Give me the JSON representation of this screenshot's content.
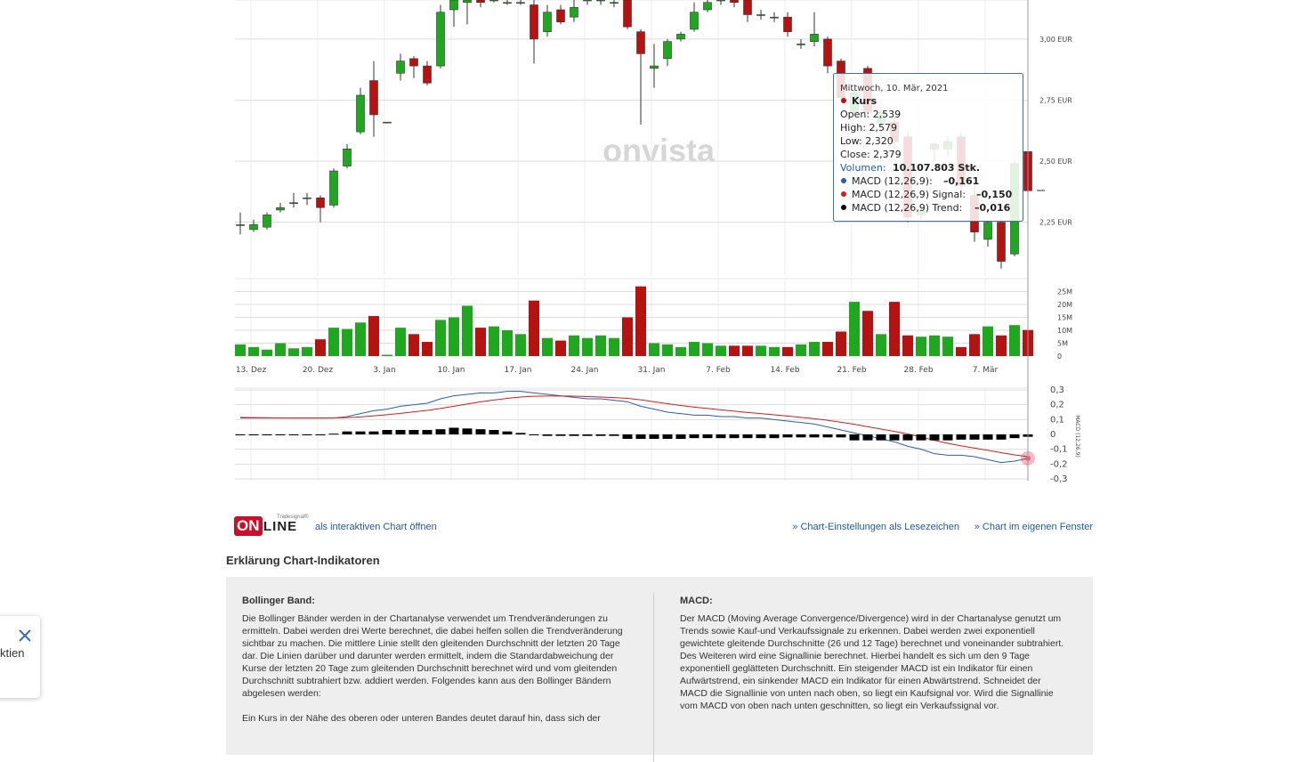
{
  "chart_data": [
    {
      "type": "candlestick",
      "open": [
        2.24,
        2.22,
        2.23,
        2.3,
        2.33,
        2.35,
        2.35,
        2.32,
        2.48,
        2.62,
        2.83,
        2.66,
        2.86,
        2.92,
        2.89,
        2.89,
        3.12,
        3.15,
        3.16,
        3.16,
        3.15,
        3.15,
        3.14,
        3.03,
        3.12,
        3.09,
        3.16,
        3.16,
        3.15,
        3.16,
        3.03,
        2.88,
        2.92,
        3.0,
        3.04,
        3.12,
        3.16,
        3.16,
        3.16,
        3.1,
        3.09,
        3.09,
        2.98,
        2.99,
        3.0,
        2.91,
        2.7,
        2.88,
        2.66,
        2.66,
        2.6,
        2.28,
        2.55,
        2.55,
        2.6,
        2.36,
        2.18,
        2.25,
        2.12,
        2.539
      ],
      "high": [
        2.29,
        2.26,
        2.29,
        2.33,
        2.37,
        2.37,
        2.36,
        2.47,
        2.57,
        2.8,
        2.91,
        2.66,
        2.94,
        2.93,
        2.91,
        3.14,
        3.18,
        3.18,
        3.17,
        3.17,
        3.17,
        3.17,
        3.16,
        3.14,
        3.14,
        3.16,
        3.17,
        3.17,
        3.17,
        3.17,
        3.04,
        2.98,
        3.0,
        3.03,
        3.15,
        3.17,
        3.17,
        3.17,
        3.17,
        3.12,
        3.11,
        3.11,
        3.0,
        3.11,
        3.01,
        2.92,
        2.8,
        2.89,
        2.72,
        2.68,
        2.62,
        2.32,
        2.58,
        2.6,
        2.62,
        2.4,
        2.26,
        2.27,
        2.5,
        2.579
      ],
      "low": [
        2.2,
        2.21,
        2.22,
        2.29,
        2.31,
        2.32,
        2.25,
        2.31,
        2.47,
        2.61,
        2.6,
        2.66,
        2.83,
        2.84,
        2.81,
        2.88,
        3.05,
        3.06,
        3.13,
        3.15,
        3.14,
        3.14,
        2.9,
        3.01,
        3.06,
        3.07,
        3.14,
        3.14,
        3.13,
        3.04,
        2.65,
        2.8,
        2.89,
        2.99,
        3.03,
        3.11,
        3.14,
        3.13,
        3.07,
        3.08,
        3.07,
        3.01,
        2.96,
        2.97,
        2.86,
        2.74,
        2.68,
        2.68,
        2.6,
        2.55,
        2.25,
        2.26,
        2.5,
        2.52,
        2.38,
        2.17,
        2.15,
        2.06,
        2.11,
        2.32
      ],
      "close": [
        2.24,
        2.24,
        2.28,
        2.31,
        2.33,
        2.35,
        2.31,
        2.46,
        2.55,
        2.77,
        2.69,
        2.66,
        2.91,
        2.89,
        2.82,
        3.11,
        3.16,
        3.16,
        3.15,
        3.16,
        3.15,
        3.15,
        3.0,
        3.11,
        3.07,
        3.13,
        3.16,
        3.16,
        3.15,
        3.05,
        2.94,
        2.89,
        2.99,
        3.02,
        3.11,
        3.15,
        3.16,
        3.15,
        3.1,
        3.1,
        3.09,
        3.03,
        2.98,
        3.02,
        2.89,
        2.76,
        2.78,
        2.7,
        2.7,
        2.58,
        2.27,
        2.3,
        2.57,
        2.58,
        2.4,
        2.21,
        2.25,
        2.09,
        2.49,
        2.379
      ],
      "up_color": "#1fa71f",
      "down_color": "#b51212",
      "ylim": [
        2.03,
        3.16
      ],
      "yticks": [
        {
          "value": 2.25,
          "label": "2,25 EUR"
        },
        {
          "value": 2.5,
          "label": "2,50 EUR"
        },
        {
          "value": 2.75,
          "label": "2,75 EUR"
        },
        {
          "value": 3,
          "label": "3,00 EUR"
        }
      ],
      "grid": true,
      "watermark": "onvista"
    },
    {
      "type": "bar",
      "values": [
        4.5,
        3.5,
        2.5,
        5,
        3,
        3.5,
        6.5,
        11,
        10.5,
        13,
        15.5,
        0.5,
        11,
        8.5,
        5.5,
        14,
        15,
        19.5,
        11,
        11.5,
        10,
        8.5,
        21.5,
        7,
        6,
        8,
        7,
        8,
        7,
        15,
        27,
        5,
        4.5,
        3.5,
        5.5,
        5,
        4,
        4,
        4,
        4,
        3.5,
        3.5,
        4.5,
        5.5,
        5.5,
        9.5,
        21,
        17.5,
        8.5,
        21,
        8,
        7.5,
        8,
        7.5,
        3.5,
        8.5,
        11.5,
        8,
        12,
        10.1
      ],
      "ylim": [
        0,
        30
      ],
      "yticks": [
        0,
        {
          "value": 5,
          "label": "5M"
        },
        {
          "value": 10,
          "label": "10M"
        },
        {
          "value": 15,
          "label": "15M"
        },
        {
          "value": 20,
          "label": "20M"
        },
        {
          "value": 25,
          "label": "25M"
        }
      ],
      "date_labels": [
        "13. Dez",
        "20. Dez",
        "3. Jan",
        "10. Jan",
        "17. Jan",
        "24. Jan",
        "31. Jan",
        "7. Feb",
        "14. Feb",
        "21. Feb",
        "28. Feb",
        "7. Mär"
      ],
      "grid": true
    },
    {
      "type": "line",
      "y_label": "MACD (12,26,9)",
      "ylim": [
        -0.312,
        0.312
      ],
      "yticks": [
        {
          "value": 0.3,
          "label": "0,3"
        },
        {
          "value": 0.2,
          "label": "0,2"
        },
        {
          "value": 0.1,
          "label": "0,1"
        },
        0,
        {
          "value": -0.1,
          "label": "-0,1"
        },
        {
          "value": -0.2,
          "label": "-0,2"
        },
        {
          "value": -0.3,
          "label": "-0,3"
        }
      ],
      "grid": true,
      "series": [
        {
          "color": "#2a5ea8",
          "style": "line",
          "values": [
            0.11,
            0.11,
            0.11,
            0.11,
            0.11,
            0.11,
            0.11,
            0.11,
            0.12,
            0.14,
            0.16,
            0.17,
            0.19,
            0.2,
            0.21,
            0.24,
            0.26,
            0.27,
            0.28,
            0.28,
            0.29,
            0.29,
            0.28,
            0.27,
            0.26,
            0.25,
            0.24,
            0.24,
            0.23,
            0.22,
            0.19,
            0.17,
            0.15,
            0.14,
            0.13,
            0.13,
            0.12,
            0.12,
            0.11,
            0.11,
            0.1,
            0.09,
            0.08,
            0.07,
            0.05,
            0.03,
            0.01,
            -0.01,
            -0.03,
            -0.05,
            -0.08,
            -0.1,
            -0.13,
            -0.14,
            -0.14,
            -0.15,
            -0.17,
            -0.19,
            -0.18,
            -0.161
          ]
        },
        {
          "color": "#d81c1c",
          "style": "line",
          "values": [
            0.115,
            0.113,
            0.112,
            0.111,
            0.11,
            0.11,
            0.11,
            0.111,
            0.113,
            0.118,
            0.125,
            0.133,
            0.142,
            0.152,
            0.162,
            0.175,
            0.19,
            0.205,
            0.22,
            0.232,
            0.243,
            0.252,
            0.257,
            0.259,
            0.259,
            0.258,
            0.255,
            0.252,
            0.248,
            0.243,
            0.233,
            0.22,
            0.207,
            0.195,
            0.184,
            0.175,
            0.166,
            0.157,
            0.148,
            0.14,
            0.132,
            0.124,
            0.115,
            0.106,
            0.095,
            0.082,
            0.068,
            0.052,
            0.036,
            0.02,
            0.003,
            -0.017,
            -0.04,
            -0.06,
            -0.077,
            -0.092,
            -0.107,
            -0.123,
            -0.138,
            -0.15
          ]
        },
        {
          "color": "#000000",
          "style": "bar",
          "values": [
            -0.005,
            -0.005,
            -0.005,
            -0.005,
            -0.005,
            -0.005,
            -0.005,
            0.005,
            0.02,
            0.02,
            0.02,
            0.03,
            0.03,
            0.03,
            0.03,
            0.035,
            0.045,
            0.04,
            0.035,
            0.03,
            0.02,
            0.01,
            -0.005,
            -0.01,
            -0.01,
            -0.01,
            -0.01,
            -0.01,
            -0.01,
            -0.03,
            -0.03,
            -0.03,
            -0.03,
            -0.03,
            -0.025,
            -0.025,
            -0.025,
            -0.025,
            -0.025,
            -0.025,
            -0.025,
            -0.02,
            -0.02,
            -0.02,
            -0.02,
            -0.02,
            -0.04,
            -0.04,
            -0.04,
            -0.04,
            -0.04,
            -0.04,
            -0.04,
            -0.04,
            -0.035,
            -0.035,
            -0.035,
            -0.035,
            -0.025,
            -0.016
          ]
        }
      ]
    }
  ],
  "tooltip": {
    "date": "Mittwoch, 10. Mär, 2021",
    "series": "Kurs",
    "lines": [
      "Open: 2,539",
      "High: 2,579",
      "Low: 2,320",
      "Close: 2,379"
    ],
    "volume_label": "Volumen:",
    "volume_value": "10.107.803 Stk.",
    "indicators": [
      {
        "label": "MACD (12,26,9):",
        "value": "–0,161"
      },
      {
        "label": "MACD (12,26,9) Signal:",
        "value": "–0,150"
      },
      {
        "label": "MACD (12,26,9) Trend:",
        "value": "–0,016"
      }
    ]
  },
  "logo": {
    "small": "Tradesignal®",
    "big_a": "ON",
    "big_b": "LINE"
  },
  "links": {
    "interactive": "als interaktiven Chart öffnen",
    "bookmark": "» Chart-Einstellungen als Lesezeichen",
    "window": "» Chart im eigenen Fenster"
  },
  "section_title": "Erklärung Chart-Indikatoren",
  "boxes": [
    {
      "title": "Bollinger Band:",
      "paragraphs": [
        "Die Bollinger Bänder werden in der Chartanalyse verwendet um Trendveränderungen zu ermitteln. Dabei werden drei Werte berechnet, die dabei helfen sollen die Trendveränderung sichtbar zu machen. Die mittlere Linie stellt den gleitenden Durchschnitt der letzten 20 Tage dar. Die Linien darüber und darunter werden ermittelt, indem die Standardabweichung der Kurse der letzten 20 Tage zum gleitenden Durchschnitt berechnet wird und vom gleitenden Durchschnitt subtrahiert bzw. addiert werden. Folgendes kann aus den Bollinger Bändern abgelesen werden:",
        "Ein Kurs in der Nähe des oberen oder unteren Bandes deutet darauf hin, dass sich der"
      ]
    },
    {
      "title": "MACD:",
      "paragraphs": [
        "Der MACD (Moving Average Convergence/Divergence) wird in der Chartanalyse genutzt um Trends sowie Kauf-und Verkaufssignale zu erkennen. Dabei werden zwei exponentiell gewichtete gleitende Durchschnitte (26 und 12 Tage) berechnet und voneinander subtrahiert. Des Weiteren wird eine Signallinie berechnet. Hierbei handelt es sich um den 9 Tage exponentiell geglätteten Durchschnitt. Ein steigender MACD ist ein Indikator für einen Aufwärtstrend, ein sinkender MACD ein Indikator für einen Abwärtstrend. Schneidet der MACD die Signallinie von unten nach oben, so liegt ein Kaufsignal vor. Wird die Signallinie vom MACD von oben nach unten geschnitten, so liegt ein Verkaufssignal vor."
      ]
    }
  ],
  "popup": {
    "text": "ktien"
  }
}
